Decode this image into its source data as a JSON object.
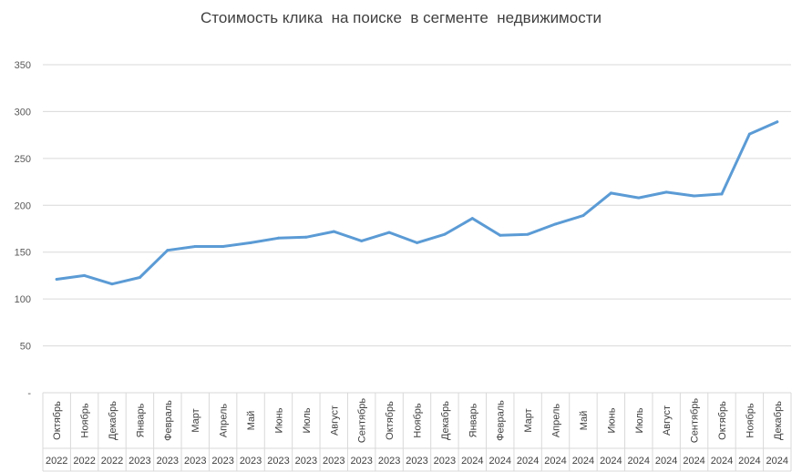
{
  "chart_data": {
    "type": "line",
    "title": "Стоимость клика  на поиске  в сегменте  недвижимости",
    "xlabel": "",
    "ylabel": "",
    "ylim": [
      0,
      350
    ],
    "yticks": [
      "-",
      "50",
      "100",
      "150",
      "200",
      "250",
      "300",
      "350"
    ],
    "grid": true,
    "legend": "none",
    "line_color": "#5b9bd5",
    "categories": [
      {
        "month": "Октябрь",
        "year": "2022"
      },
      {
        "month": "Ноябрь",
        "year": "2022"
      },
      {
        "month": "Декабрь",
        "year": "2022"
      },
      {
        "month": "Январь",
        "year": "2023"
      },
      {
        "month": "Февраль",
        "year": "2023"
      },
      {
        "month": "Март",
        "year": "2023"
      },
      {
        "month": "Апрель",
        "year": "2023"
      },
      {
        "month": "Май",
        "year": "2023"
      },
      {
        "month": "Июнь",
        "year": "2023"
      },
      {
        "month": "Июль",
        "year": "2023"
      },
      {
        "month": "Август",
        "year": "2023"
      },
      {
        "month": "Сентябрь",
        "year": "2023"
      },
      {
        "month": "Октябрь",
        "year": "2023"
      },
      {
        "month": "Ноябрь",
        "year": "2023"
      },
      {
        "month": "Декабрь",
        "year": "2023"
      },
      {
        "month": "Январь",
        "year": "2024"
      },
      {
        "month": "Февраль",
        "year": "2024"
      },
      {
        "month": "Март",
        "year": "2024"
      },
      {
        "month": "Апрель",
        "year": "2024"
      },
      {
        "month": "Май",
        "year": "2024"
      },
      {
        "month": "Июнь",
        "year": "2024"
      },
      {
        "month": "Июль",
        "year": "2024"
      },
      {
        "month": "Август",
        "year": "2024"
      },
      {
        "month": "Сентябрь",
        "year": "2024"
      },
      {
        "month": "Октябрь",
        "year": "2024"
      },
      {
        "month": "Ноябрь",
        "year": "2024"
      },
      {
        "month": "Декабрь",
        "year": "2024"
      }
    ],
    "values": [
      121,
      125,
      116,
      123,
      152,
      156,
      156,
      160,
      165,
      166,
      172,
      162,
      171,
      160,
      169,
      186,
      168,
      169,
      180,
      189,
      213,
      208,
      214,
      210,
      212,
      276,
      289
    ]
  }
}
